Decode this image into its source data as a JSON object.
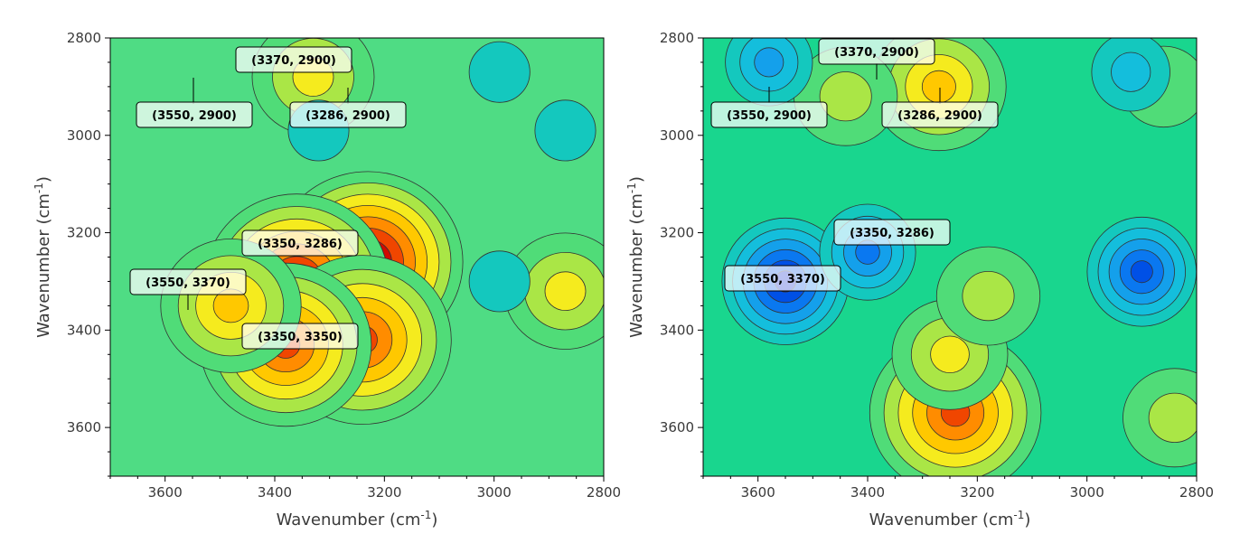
{
  "chart_data": [
    {
      "type": "heatmap",
      "subtype": "filled contour (synchronous 2D correlation map)",
      "xlabel": "Wavenumber (cm",
      "xlabel_sup": "-1",
      "xlabel_tail": ")",
      "ylabel": "Wavenumber (cm",
      "ylabel_sup": "-1",
      "ylabel_tail": ")",
      "xlim": [
        3700,
        2800
      ],
      "ylim": [
        2800,
        3700
      ],
      "x_axis": "reversed",
      "y_axis": "increasing downward",
      "xticks": [
        3600,
        3400,
        3200,
        3000,
        2800
      ],
      "yticks": [
        2800,
        3000,
        3200,
        3400,
        3600
      ],
      "colormap": "rainbow (blue=negative, green=zero, red=positive)",
      "background_color": "#4fdc84",
      "grid": false,
      "peaks": [
        {
          "x": 3330,
          "y": 2880,
          "level": 0.45
        },
        {
          "x": 3230,
          "y": 3260,
          "level": 1.0
        },
        {
          "x": 3360,
          "y": 3300,
          "level": 0.95
        },
        {
          "x": 3240,
          "y": 3420,
          "level": 0.9
        },
        {
          "x": 3380,
          "y": 3430,
          "level": 0.85
        },
        {
          "x": 3480,
          "y": 3350,
          "level": 0.6
        },
        {
          "x": 2870,
          "y": 3320,
          "level": 0.45
        },
        {
          "x": 2990,
          "y": 3300,
          "level": -0.15
        },
        {
          "x": 3320,
          "y": 2990,
          "level": -0.15
        },
        {
          "x": 2870,
          "y": 2990,
          "level": -0.15
        },
        {
          "x": 2990,
          "y": 2870,
          "level": -0.15
        }
      ],
      "annotations": [
        {
          "text": "(3370, 2900)",
          "x": 3370,
          "y": 2900
        },
        {
          "text": "(3550, 2900)",
          "x": 3550,
          "y": 2900
        },
        {
          "text": "(3286, 2900)",
          "x": 3286,
          "y": 2900
        },
        {
          "text": "(3350, 3286)",
          "x": 3350,
          "y": 3286
        },
        {
          "text": "(3550, 3370)",
          "x": 3550,
          "y": 3370
        },
        {
          "text": "(3350, 3350)",
          "x": 3350,
          "y": 3350
        }
      ]
    },
    {
      "type": "heatmap",
      "subtype": "filled contour (asynchronous 2D correlation map)",
      "xlabel": "Wavenumber (cm",
      "xlabel_sup": "-1",
      "xlabel_tail": ")",
      "ylabel": "Wavenumber (cm",
      "ylabel_sup": "-1",
      "ylabel_tail": ")",
      "xlim": [
        3700,
        2800
      ],
      "ylim": [
        2800,
        3700
      ],
      "x_axis": "reversed",
      "y_axis": "increasing downward",
      "xticks": [
        3600,
        3400,
        3200,
        3000,
        2800
      ],
      "yticks": [
        2800,
        3000,
        3200,
        3400,
        3600
      ],
      "colormap": "rainbow (blue=negative, green=zero, red=positive)",
      "background_color": "#19d68e",
      "grid": false,
      "peaks": [
        {
          "x": 3270,
          "y": 2900,
          "level": 0.55
        },
        {
          "x": 3440,
          "y": 2920,
          "level": 0.3
        },
        {
          "x": 3580,
          "y": 2850,
          "level": -0.45
        },
        {
          "x": 3550,
          "y": 3300,
          "level": -0.9
        },
        {
          "x": 3400,
          "y": 3240,
          "level": -0.55
        },
        {
          "x": 2900,
          "y": 3280,
          "level": -0.7
        },
        {
          "x": 3240,
          "y": 3570,
          "level": 0.85
        },
        {
          "x": 3250,
          "y": 3450,
          "level": 0.4
        },
        {
          "x": 3180,
          "y": 3330,
          "level": 0.3
        },
        {
          "x": 2840,
          "y": 3580,
          "level": 0.3
        },
        {
          "x": 2860,
          "y": 2900,
          "level": 0.15
        },
        {
          "x": 2920,
          "y": 2870,
          "level": -0.35
        }
      ],
      "annotations": [
        {
          "text": "(3370, 2900)",
          "x": 3370,
          "y": 2900
        },
        {
          "text": "(3550, 2900)",
          "x": 3550,
          "y": 2900
        },
        {
          "text": "(3286, 2900)",
          "x": 3286,
          "y": 2900
        },
        {
          "text": "(3350, 3286)",
          "x": 3350,
          "y": 3286
        },
        {
          "text": "(3550, 3370)",
          "x": 3550,
          "y": 3370
        }
      ]
    }
  ]
}
